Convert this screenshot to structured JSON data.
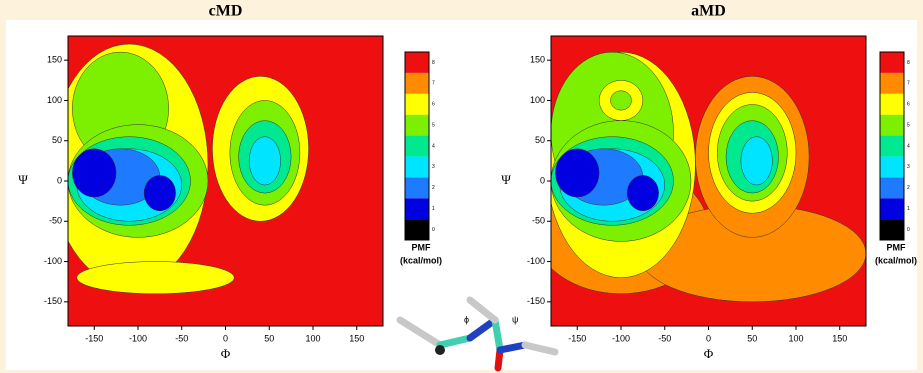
{
  "chart_data": [
    {
      "type": "contour",
      "title": "cMD",
      "xlabel": "Φ",
      "ylabel": "Ψ",
      "xlim": [
        -180,
        180
      ],
      "ylim": [
        -180,
        180
      ],
      "xticks": [
        -150,
        -100,
        -50,
        0,
        50,
        100,
        150
      ],
      "yticks": [
        -150,
        -100,
        -50,
        0,
        50,
        100,
        150
      ],
      "colorbar": {
        "title": [
          "PMF",
          "(kcal/mol)"
        ],
        "ticks": [
          0,
          1,
          2,
          3,
          4,
          5,
          6,
          7,
          8
        ],
        "colors": [
          "#000000",
          "#0000e0",
          "#1e7bff",
          "#00e5ff",
          "#00e890",
          "#7cf000",
          "#ffff00",
          "#ff8c00",
          "#ee1010"
        ]
      }
    },
    {
      "type": "contour",
      "title": "aMD",
      "xlabel": "Φ",
      "ylabel": "Ψ",
      "xlim": [
        -180,
        180
      ],
      "ylim": [
        -180,
        180
      ],
      "xticks": [
        -150,
        -100,
        -50,
        0,
        50,
        100,
        150
      ],
      "yticks": [
        -150,
        -100,
        -50,
        0,
        50,
        100,
        150
      ],
      "colorbar": {
        "title": [
          "PMF",
          "(kcal/mol)"
        ],
        "ticks": [
          0,
          1,
          2,
          3,
          4,
          5,
          6,
          7,
          8
        ],
        "colors": [
          "#000000",
          "#0000e0",
          "#1e7bff",
          "#00e5ff",
          "#00e890",
          "#7cf000",
          "#ffff00",
          "#ff8c00",
          "#ee1010"
        ]
      }
    }
  ],
  "molecule_labels": [
    "ϕ",
    "ψ"
  ]
}
